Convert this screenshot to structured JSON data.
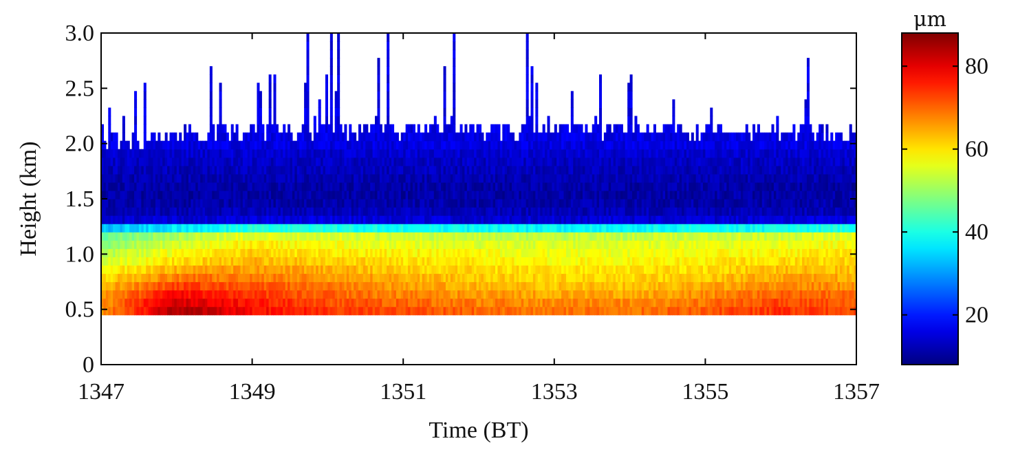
{
  "chart_data": {
    "type": "heatmap",
    "xlabel": "Time (BT)",
    "ylabel": "Height (km)",
    "xlim": [
      1347,
      1357
    ],
    "ylim": [
      0,
      3.0
    ],
    "x_ticks": [
      "1347",
      "1349",
      "1351",
      "1353",
      "1355",
      "1357"
    ],
    "y_ticks": [
      "0",
      "0.5",
      "1.0",
      "1.5",
      "2.0",
      "2.5",
      "3.0"
    ],
    "colorbar": {
      "unit": "μm",
      "range": [
        8,
        88
      ],
      "ticks": [
        "20",
        "40",
        "60",
        "80"
      ],
      "colormap": "jet"
    },
    "height_bins_km": [
      0.5,
      0.6,
      0.7,
      0.8,
      0.9,
      1.0,
      1.1,
      1.2,
      1.3,
      1.4,
      1.5,
      1.6,
      1.7,
      1.8,
      1.9,
      2.0
    ],
    "profile_times": [
      1347,
      1348,
      1349,
      1350,
      1351,
      1352,
      1353,
      1354,
      1355,
      1356,
      1357
    ],
    "profiles_um": [
      [
        66,
        66,
        64,
        60,
        56,
        52,
        48,
        44,
        14,
        12,
        11,
        11,
        12,
        13,
        14,
        16
      ],
      [
        85,
        80,
        74,
        68,
        62,
        58,
        54,
        50,
        15,
        12,
        11,
        11,
        12,
        13,
        14,
        16
      ],
      [
        78,
        75,
        72,
        68,
        65,
        62,
        59,
        55,
        16,
        12,
        11,
        11,
        12,
        13,
        14,
        16
      ],
      [
        74,
        71,
        69,
        66,
        63,
        60,
        57,
        54,
        16,
        12,
        11,
        11,
        12,
        13,
        14,
        16
      ],
      [
        72,
        69,
        66,
        64,
        61,
        59,
        56,
        53,
        16,
        12,
        11,
        11,
        12,
        13,
        14,
        16
      ],
      [
        70,
        67,
        64,
        62,
        60,
        58,
        55,
        52,
        15,
        12,
        11,
        11,
        12,
        13,
        14,
        16
      ],
      [
        69,
        66,
        63,
        61,
        59,
        57,
        55,
        52,
        15,
        12,
        11,
        11,
        12,
        13,
        14,
        16
      ],
      [
        69,
        66,
        63,
        61,
        59,
        57,
        55,
        52,
        15,
        12,
        11,
        11,
        12,
        13,
        14,
        16
      ],
      [
        71,
        68,
        65,
        62,
        60,
        58,
        56,
        53,
        15,
        12,
        11,
        11,
        12,
        13,
        14,
        16
      ],
      [
        74,
        72,
        68,
        65,
        62,
        59,
        56,
        53,
        15,
        12,
        11,
        11,
        12,
        13,
        14,
        16
      ],
      [
        72,
        70,
        67,
        64,
        62,
        60,
        58,
        55,
        16,
        12,
        11,
        11,
        12,
        13,
        14,
        16
      ]
    ],
    "cloud_top_km": [
      1.95,
      2.05,
      2.05,
      2.1,
      2.1,
      2.1,
      2.1,
      2.1,
      2.1,
      2.1,
      2.05
    ],
    "cloud_base_km": 0.45,
    "grid": false
  }
}
